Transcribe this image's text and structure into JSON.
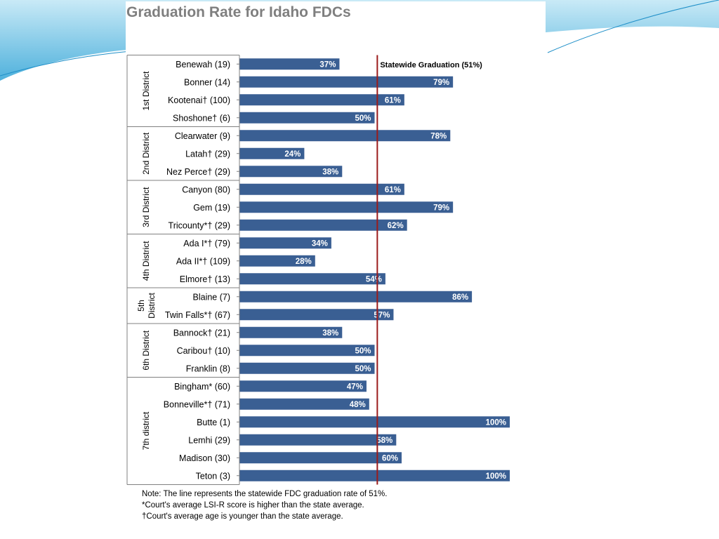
{
  "colors": {
    "bar": "#3a5f93",
    "reference_line": "#9b1b1b",
    "axis": "#808080",
    "title": "#7f7f7f",
    "slide_swoosh": "#4fb3d9"
  },
  "chart_data": {
    "type": "bar",
    "orientation": "horizontal",
    "title": "Graduation Rate for Idaho FDCs",
    "xlabel": "",
    "ylabel": "",
    "xlim": [
      0,
      100
    ],
    "unit": "%",
    "grid": false,
    "reference_line": {
      "value": 51,
      "label": "Statewide Graduation (51%)"
    },
    "groups": [
      {
        "name": "1st District",
        "categories": [
          {
            "label": "Benewah (19)",
            "value": 37,
            "value_label": "37%"
          },
          {
            "label": "Bonner (14)",
            "value": 79,
            "value_label": "79%"
          },
          {
            "label": "Kootenai† (100)",
            "value": 61,
            "value_label": "61%"
          },
          {
            "label": "Shoshone† (6)",
            "value": 50,
            "value_label": "50%"
          }
        ]
      },
      {
        "name": "2nd District",
        "categories": [
          {
            "label": "Clearwater (9)",
            "value": 78,
            "value_label": "78%"
          },
          {
            "label": "Latah† (29)",
            "value": 24,
            "value_label": "24%"
          },
          {
            "label": "Nez Perce† (29)",
            "value": 38,
            "value_label": "38%"
          }
        ]
      },
      {
        "name": "3rd District",
        "categories": [
          {
            "label": "Canyon (80)",
            "value": 61,
            "value_label": "61%"
          },
          {
            "label": "Gem (19)",
            "value": 79,
            "value_label": "79%"
          },
          {
            "label": "Tricounty*† (29)",
            "value": 62,
            "value_label": "62%"
          }
        ]
      },
      {
        "name": "4th District",
        "categories": [
          {
            "label": "Ada I*† (79)",
            "value": 34,
            "value_label": "34%"
          },
          {
            "label": "Ada II*† (109)",
            "value": 28,
            "value_label": "28%"
          },
          {
            "label": "Elmore† (13)",
            "value": 54,
            "value_label": "54%"
          }
        ]
      },
      {
        "name": "5th District",
        "name_lines": [
          "5th",
          "District"
        ],
        "categories": [
          {
            "label": "Blaine (7)",
            "value": 86,
            "value_label": "86%"
          },
          {
            "label": "Twin Falls*† (67)",
            "value": 57,
            "value_label": "57%"
          }
        ]
      },
      {
        "name": "6th District",
        "categories": [
          {
            "label": "Bannock† (21)",
            "value": 38,
            "value_label": "38%"
          },
          {
            "label": "Caribou† (10)",
            "value": 50,
            "value_label": "50%"
          },
          {
            "label": "Franklin (8)",
            "value": 50,
            "value_label": "50%"
          }
        ]
      },
      {
        "name": "7th district",
        "categories": [
          {
            "label": "Bingham* (60)",
            "value": 47,
            "value_label": "47%"
          },
          {
            "label": "Bonneville*† (71)",
            "value": 48,
            "value_label": "48%"
          },
          {
            "label": "Butte (1)",
            "value": 100,
            "value_label": "100%"
          },
          {
            "label": "Lemhi (29)",
            "value": 58,
            "value_label": "58%"
          },
          {
            "label": "Madison (30)",
            "value": 60,
            "value_label": "60%"
          },
          {
            "label": "Teton (3)",
            "value": 100,
            "value_label": "100%"
          }
        ]
      }
    ]
  },
  "notes": [
    "Note: The line represents the statewide FDC graduation rate of 51%.",
    "*Court's average LSI-R score is higher than the state average.",
    "†Court's average age is younger than the state average."
  ]
}
